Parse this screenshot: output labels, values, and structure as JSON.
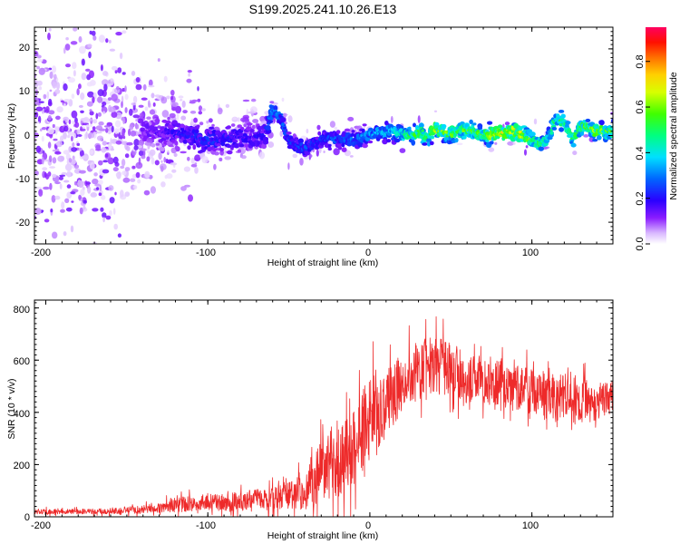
{
  "title": "S199.2025.241.10.26.E13",
  "colors": {
    "line": "#ee2a2a",
    "frame": "#000000"
  },
  "chart_data": [
    {
      "type": "heatmap",
      "xlabel": "Height of straight line (km)",
      "ylabel": "Frequency (Hz)",
      "xlim": [
        -207,
        150
      ],
      "ylim": [
        -25,
        25
      ],
      "xticks": [
        -200,
        -100,
        0,
        100
      ],
      "xtick_labels": [
        "-200",
        "-100",
        "0",
        "100"
      ],
      "yticks": [
        -20,
        -10,
        0,
        10,
        20
      ],
      "ytick_labels": [
        "-20",
        "-10",
        "0",
        "10",
        "20"
      ],
      "colorbar": {
        "label": "Normalized spectral amplitude",
        "range": [
          0,
          0.95
        ],
        "ticks": [
          0,
          0.2,
          0.4,
          0.6,
          0.8
        ],
        "tick_labels": [
          "0.0",
          "0.2",
          "0.4",
          "0.6",
          "0.8"
        ]
      },
      "ridge": {
        "x": [
          -135,
          -120,
          -100,
          -80,
          -65,
          -60,
          -55,
          -50,
          -45,
          -40,
          -35,
          -30,
          -20,
          -10,
          0,
          10,
          20,
          25,
          30,
          35,
          40,
          50,
          60,
          70,
          80,
          90,
          100,
          105,
          110,
          115,
          120,
          125,
          130,
          140,
          150
        ],
        "frequency": [
          1,
          0.5,
          -1,
          -0.5,
          0,
          6,
          4,
          -1,
          -2.5,
          -3,
          -2,
          -1,
          -0.5,
          -1,
          0.3,
          0.8,
          0.5,
          0,
          1,
          -0.5,
          1.5,
          0.5,
          1.5,
          0,
          0.5,
          1,
          -1,
          -2,
          -0.5,
          4,
          3,
          -1,
          2,
          1,
          0.8
        ],
        "peak_amplitude": [
          0.15,
          0.2,
          0.25,
          0.2,
          0.2,
          0.35,
          0.3,
          0.25,
          0.25,
          0.3,
          0.25,
          0.25,
          0.3,
          0.3,
          0.35,
          0.4,
          0.45,
          0.55,
          0.6,
          0.55,
          0.65,
          0.6,
          0.6,
          0.6,
          0.7,
          0.75,
          0.6,
          0.5,
          0.5,
          0.5,
          0.55,
          0.5,
          0.6,
          0.65,
          0.6
        ]
      }
    },
    {
      "type": "line",
      "xlabel": "Height of straight line (km)",
      "ylabel": "SNR (10 * v/v)",
      "xlim": [
        -207,
        150
      ],
      "ylim": [
        0,
        830
      ],
      "xticks": [
        -200,
        -100,
        0,
        100
      ],
      "xtick_labels": [
        "-200",
        "-100",
        "0",
        "100"
      ],
      "yticks": [
        0,
        200,
        400,
        600,
        800
      ],
      "ytick_labels": [
        "0",
        "200",
        "400",
        "600",
        "800"
      ],
      "series": [
        {
          "name": "SNR",
          "x": [
            -207,
            -180,
            -160,
            -140,
            -130,
            -120,
            -110,
            -100,
            -90,
            -80,
            -70,
            -60,
            -50,
            -40,
            -35,
            -30,
            -25,
            -20,
            -15,
            -10,
            -5,
            0,
            5,
            10,
            15,
            20,
            30,
            40,
            50,
            60,
            70,
            80,
            90,
            100,
            110,
            120,
            130,
            140,
            150
          ],
          "mean": [
            20,
            20,
            22,
            28,
            35,
            45,
            50,
            55,
            55,
            60,
            65,
            70,
            80,
            100,
            140,
            170,
            200,
            220,
            250,
            260,
            330,
            380,
            400,
            430,
            470,
            520,
            560,
            580,
            560,
            530,
            520,
            510,
            500,
            480,
            460,
            470,
            440,
            450,
            450
          ],
          "amplitude": [
            12,
            12,
            14,
            20,
            25,
            35,
            38,
            40,
            40,
            45,
            50,
            55,
            65,
            90,
            120,
            150,
            180,
            200,
            200,
            180,
            200,
            200,
            180,
            160,
            150,
            140,
            140,
            140,
            130,
            120,
            110,
            110,
            110,
            110,
            120,
            140,
            120,
            100,
            80
          ]
        }
      ]
    }
  ]
}
